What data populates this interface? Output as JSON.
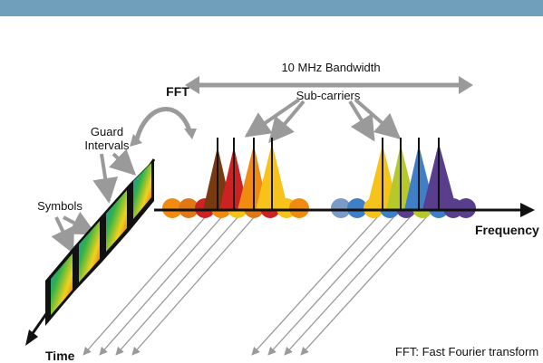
{
  "labels": {
    "bandwidth": "10 MHz Bandwidth",
    "subcarriers": "Sub-carriers",
    "fft": "FFT",
    "guard_intervals_line1": "Guard",
    "guard_intervals_line2": "Intervals",
    "symbols": "Symbols",
    "frequency": "Frequency",
    "time": "Time",
    "legend": "FFT: Fast Fourier transform"
  },
  "colors": {
    "header_band": "#6f9fbb",
    "arrow_gray": "#9a9a9a",
    "carrier_brown": "#7a3a10",
    "carrier_red": "#cc2222",
    "carrier_orange": "#f08a10",
    "carrier_yellow": "#f7c21a",
    "carrier_lime": "#b7c92a",
    "carrier_blue": "#3f7fc7",
    "carrier_purple": "#5a3e8e"
  }
}
